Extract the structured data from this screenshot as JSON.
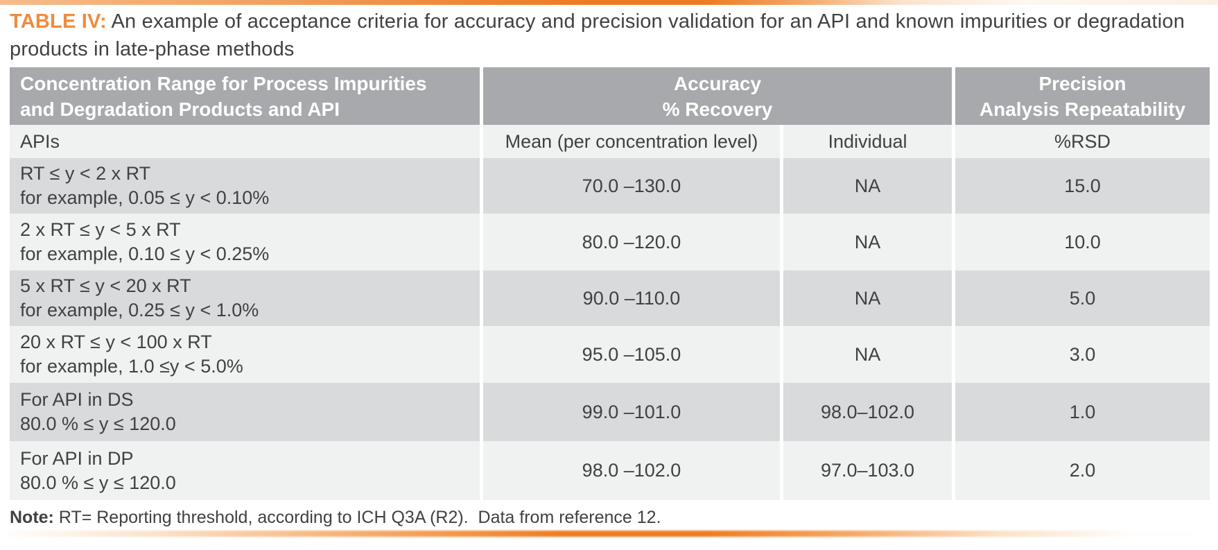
{
  "page": {
    "title": {
      "label": "TABLE IV:",
      "text": " An example of acceptance criteria for accuracy and precision validation for an API and known impurities or degradation products in late-phase methods"
    }
  },
  "colors": {
    "accent_orange": "#f18a3d",
    "bar_orange_peak": "#ee7c22",
    "header_bg": "#a7a9ac",
    "header_text": "#ffffff",
    "row_dark_bg": "#d9dadb",
    "row_light_bg": "#f0f1f1",
    "body_text": "#414042"
  },
  "table": {
    "header": {
      "concentration_line1": "Concentration Range for Process Impurities",
      "concentration_line2": "and Degradation Products and API",
      "accuracy_line1": "Accuracy",
      "accuracy_line2": "% Recovery",
      "precision_line1": "Precision",
      "precision_line2": "Analysis Repeatability"
    },
    "subheader": {
      "col1": "APIs",
      "mean": "Mean (per concentration level)",
      "individual": "Individual",
      "rsd": "%RSD"
    },
    "rows": [
      {
        "range_line1": "RT ≤ y < 2 x RT",
        "range_line2": "for example, 0.05 ≤ y < 0.10%",
        "mean": "70.0 –130.0",
        "individual": "NA",
        "rsd": "15.0"
      },
      {
        "range_line1": "2 x RT ≤ y < 5 x RT",
        "range_line2": "for example, 0.10 ≤ y < 0.25%",
        "mean": "80.0 –120.0",
        "individual": "NA",
        "rsd": "10.0"
      },
      {
        "range_line1": "5 x RT ≤ y < 20 x RT",
        "range_line2": "for example, 0.25 ≤ y < 1.0%",
        "mean": "90.0 –110.0",
        "individual": "NA",
        "rsd": "5.0"
      },
      {
        "range_line1": "20 x RT ≤ y < 100 x RT",
        "range_line2": "for example, 1.0 ≤y < 5.0%",
        "mean": "95.0 –105.0",
        "individual": "NA",
        "rsd": "3.0"
      },
      {
        "range_line1": "For API in DS",
        "range_line2": "80.0 % ≤ y ≤ 120.0",
        "mean": "99.0 –101.0",
        "individual": "98.0–102.0",
        "rsd": "1.0"
      },
      {
        "range_line1": "For API in DP",
        "range_line2": "80.0 % ≤ y ≤ 120.0",
        "mean": "98.0 –102.0",
        "individual": "97.0–103.0",
        "rsd": "2.0"
      }
    ]
  },
  "note": {
    "label": "Note:",
    "text": " RT= Reporting threshold, according to ICH Q3A (R2).  Data from reference 12."
  }
}
